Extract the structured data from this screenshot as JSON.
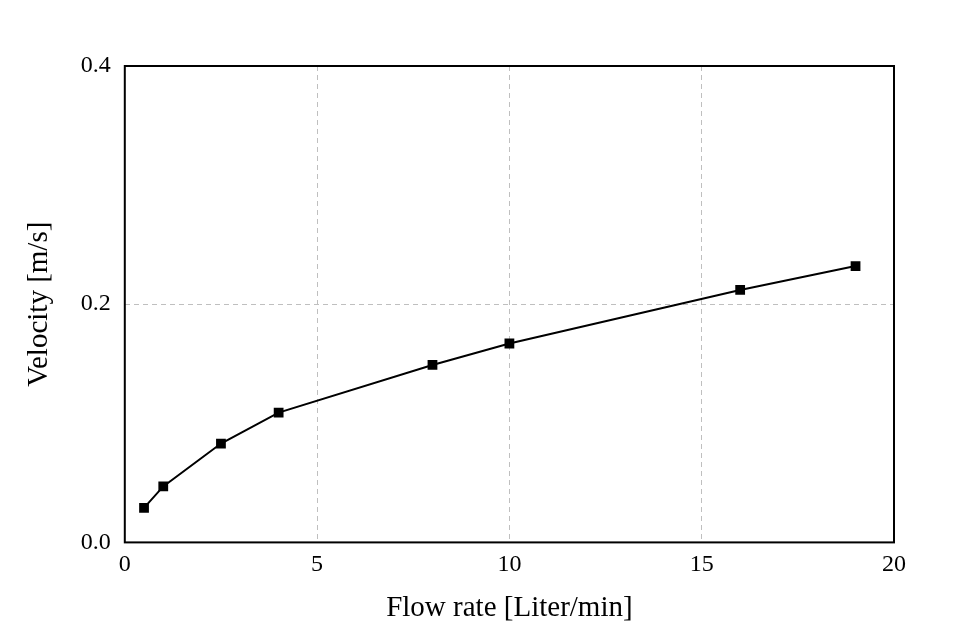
{
  "chart_data": {
    "type": "line",
    "x_label": "Flow rate [Liter/min]",
    "y_label": "Velocity [m/s]",
    "x": [
      0.5,
      1,
      2.5,
      4,
      8,
      10,
      16,
      19
    ],
    "series": [
      {
        "name": "Velocity",
        "color": "#000000",
        "marker": "square",
        "line_style": "solid",
        "values": [
          0.029,
          0.047,
          0.083,
          0.109,
          0.149,
          0.167,
          0.212,
          0.232
        ]
      }
    ],
    "xlim": [
      0,
      20
    ],
    "xticks": [
      0,
      5,
      10,
      15,
      20
    ],
    "ylim": [
      0,
      0.4
    ],
    "yticks": [
      {
        "value": 0,
        "label": "0.0"
      },
      0.2,
      0.4
    ],
    "grid": true
  }
}
